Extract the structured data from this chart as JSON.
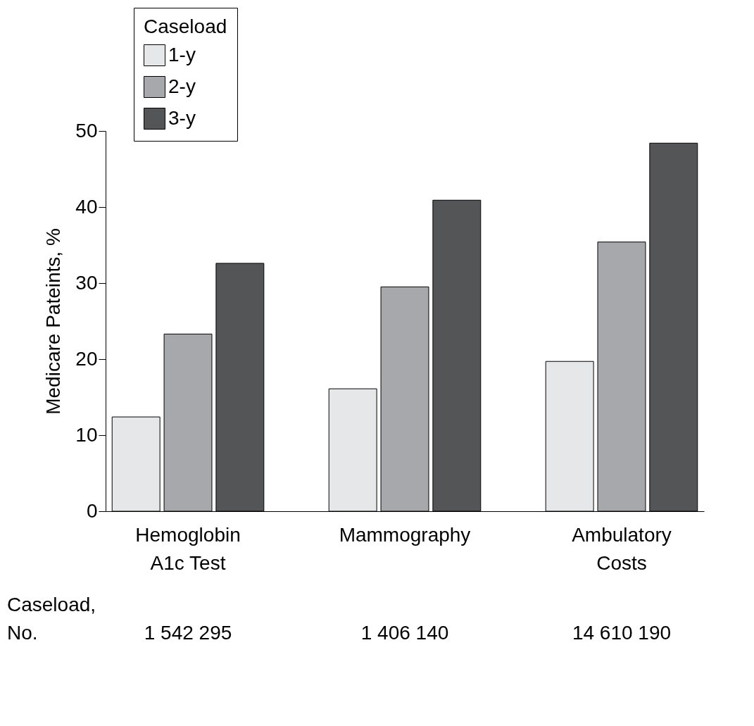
{
  "chart_data": {
    "type": "bar",
    "categories": [
      "Hemoglobin A1c Test",
      "Mammography",
      "Ambulatory Costs"
    ],
    "series": [
      {
        "name": "1-y",
        "color": "#e6e7e8",
        "values": [
          12.4,
          16.1,
          19.7
        ]
      },
      {
        "name": "2-y",
        "color": "#a7a8ab",
        "values": [
          23.3,
          29.5,
          35.4
        ]
      },
      {
        "name": "3-y",
        "color": "#545557",
        "values": [
          32.6,
          40.9,
          48.4
        ]
      }
    ],
    "ylabel": "Medicare Pateints, %",
    "legend_title": "Caseload",
    "ylim": [
      0,
      50
    ],
    "yticks": [
      0,
      10,
      20,
      30,
      40,
      50
    ],
    "grid": false,
    "legend": "top left",
    "annotations": [
      "Caseload,\nNo.",
      "1 542 295",
      "1 406 140",
      "14 610 190"
    ]
  }
}
